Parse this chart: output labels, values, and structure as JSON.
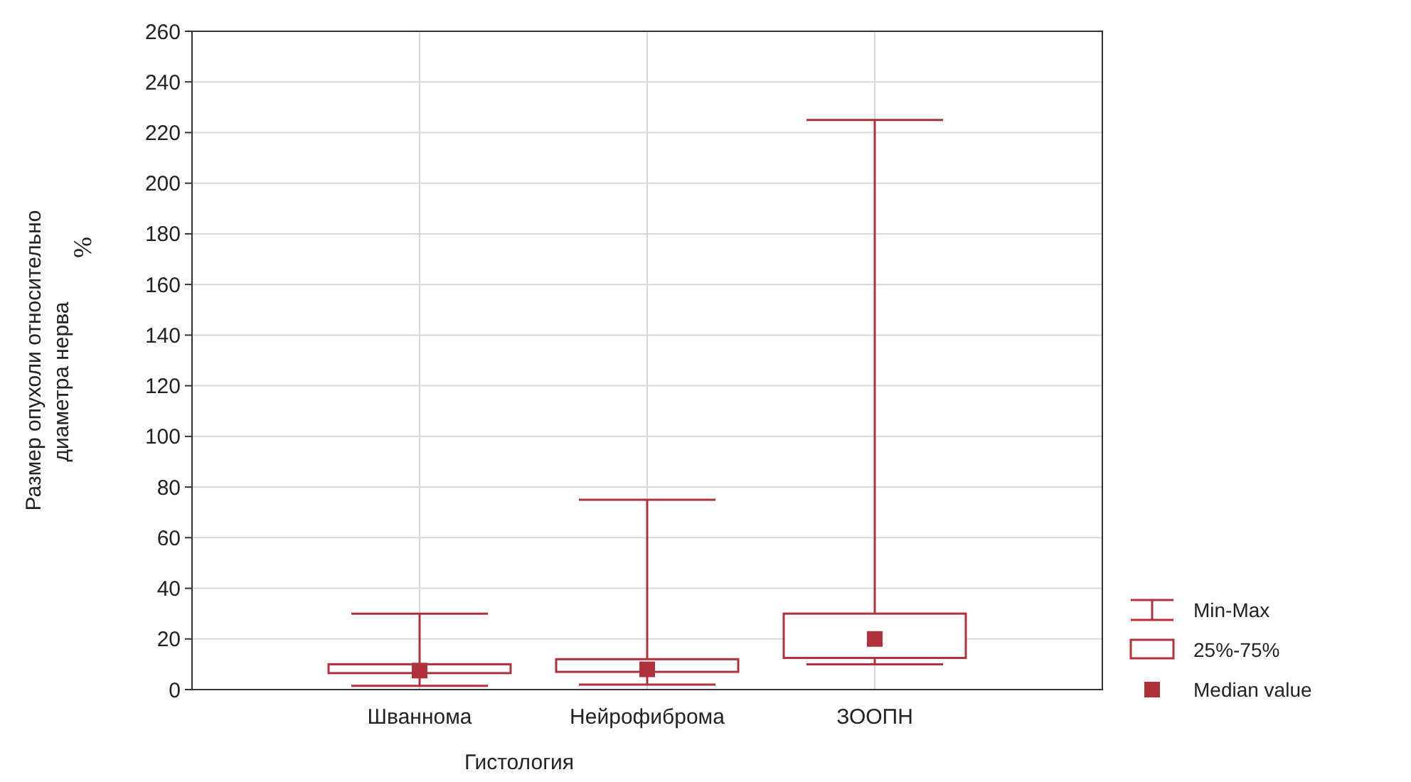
{
  "chart_data": {
    "type": "box",
    "xlabel": "Гистология",
    "ylabel": "Размер опухоли относительно диаметра нерва",
    "categories": [
      "Шваннома",
      "Нейрофиброма",
      "ЗООПН"
    ],
    "series": [
      {
        "color": "#b0303c",
        "boxes": [
          {
            "low": 1.5,
            "q1": 6.5,
            "median": 7.5,
            "q3": 10,
            "high": 30
          },
          {
            "low": 2,
            "q1": 7,
            "median": 8,
            "q3": 12,
            "high": 75
          },
          {
            "low": 10,
            "q1": 12.5,
            "median": 20,
            "q3": 30,
            "high": 225
          }
        ]
      }
    ],
    "ylim": [
      0,
      260
    ],
    "yticks": [
      0,
      20,
      40,
      60,
      80,
      100,
      120,
      140,
      160,
      180,
      200,
      220,
      240,
      260
    ],
    "grid": true,
    "marker": "square",
    "annotations": [
      "%",
      "Min-Max",
      "25%-75%",
      "Median value"
    ]
  }
}
